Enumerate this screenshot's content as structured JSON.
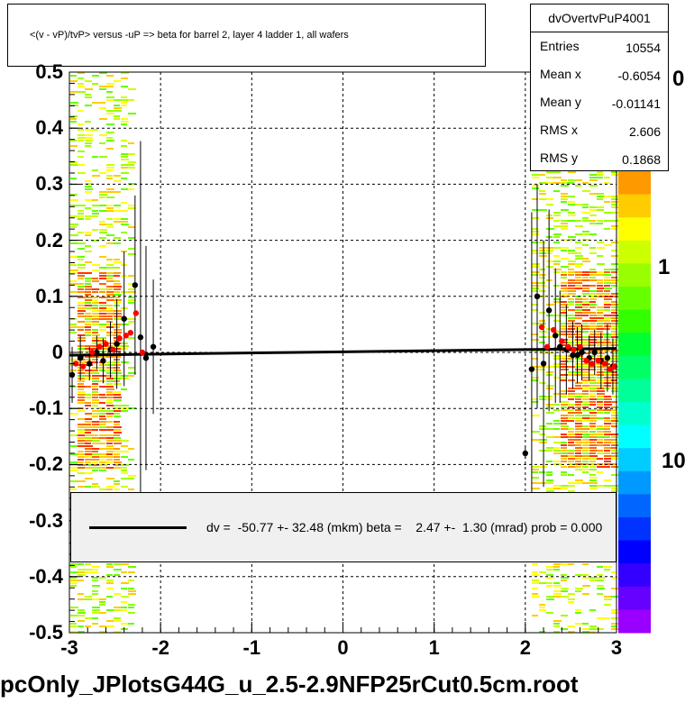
{
  "chart_data": {
    "type": "scatter",
    "title": "<(v - vP)/tvP> versus  -uP => beta for barrel 2, layer 4 ladder 1, all wafers",
    "xlim": [
      -3,
      3
    ],
    "ylim": [
      -0.5,
      0.5
    ],
    "x_ticks": [
      "-3",
      "-2",
      "-1",
      "0",
      "1",
      "2",
      "3"
    ],
    "y_ticks": [
      "-0.5",
      "-0.4",
      "-0.3",
      "-0.2",
      "-0.1",
      "0",
      "0.1",
      "0.2",
      "0.3",
      "0.4",
      "0.5"
    ],
    "grid": true,
    "colorbar_ticks": [
      "0",
      "1",
      "10"
    ],
    "stats": {
      "name": "dvOvertvPuP4001",
      "rows": [
        {
          "label": "Entries",
          "value": "10554"
        },
        {
          "label": "Mean x",
          "value": "-0.6054"
        },
        {
          "label": "Mean y",
          "value": "-0.01141"
        },
        {
          "label": "RMS x",
          "value": "2.606"
        },
        {
          "label": "RMS y",
          "value": "0.1868"
        }
      ]
    },
    "fit_legend": "dv =  -50.77 +- 32.48 (mkm) beta =    2.47 +-  1.30 (mrad) prob = 0.000",
    "fit_line": {
      "x": [
        -3,
        3
      ],
      "y": [
        -0.005,
        0.007
      ]
    },
    "series": [
      {
        "color": "#000000",
        "points": [
          {
            "x": -2.97,
            "y": -0.04,
            "err": 0.05
          },
          {
            "x": -2.88,
            "y": -0.01,
            "err": 0.04
          },
          {
            "x": -2.78,
            "y": -0.02,
            "err": 0.03
          },
          {
            "x": -2.7,
            "y": 0.0,
            "err": 0.03
          },
          {
            "x": -2.63,
            "y": -0.015,
            "err": 0.04
          },
          {
            "x": -2.55,
            "y": 0.005,
            "err": 0.05
          },
          {
            "x": -2.48,
            "y": 0.015,
            "err": 0.08
          },
          {
            "x": -2.4,
            "y": 0.06,
            "err": 0.12
          },
          {
            "x": -2.28,
            "y": 0.12,
            "err": 0.16
          },
          {
            "x": -2.22,
            "y": 0.027,
            "err": 0.35
          },
          {
            "x": -2.16,
            "y": -0.01,
            "err": 0.2
          },
          {
            "x": -2.08,
            "y": 0.01,
            "err": 0.12
          },
          {
            "x": 2.0,
            "y": -0.18,
            "err": 0.01
          },
          {
            "x": 2.07,
            "y": -0.03,
            "err": 0.28
          },
          {
            "x": 2.13,
            "y": 0.1,
            "err": 0.2
          },
          {
            "x": 2.2,
            "y": -0.02,
            "err": 0.22
          },
          {
            "x": 2.26,
            "y": 0.075,
            "err": 0.18
          },
          {
            "x": 2.33,
            "y": 0.03,
            "err": 0.12
          },
          {
            "x": 2.38,
            "y": 0.01,
            "err": 0.1
          },
          {
            "x": 2.45,
            "y": 0.005,
            "err": 0.08
          },
          {
            "x": 2.52,
            "y": -0.005,
            "err": 0.06
          },
          {
            "x": 2.57,
            "y": -0.005,
            "err": 0.05
          },
          {
            "x": 2.62,
            "y": 0.0,
            "err": 0.05
          },
          {
            "x": 2.7,
            "y": -0.01,
            "err": 0.04
          },
          {
            "x": 2.76,
            "y": 0.0,
            "err": 0.04
          },
          {
            "x": 2.83,
            "y": -0.015,
            "err": 0.05
          },
          {
            "x": 2.9,
            "y": -0.01,
            "err": 0.06
          },
          {
            "x": 2.96,
            "y": -0.025,
            "err": 0.05
          }
        ]
      },
      {
        "color": "#ff0000",
        "points": [
          {
            "x": -2.93,
            "y": -0.02
          },
          {
            "x": -2.85,
            "y": -0.025
          },
          {
            "x": -2.75,
            "y": 0.0
          },
          {
            "x": -2.67,
            "y": 0.01
          },
          {
            "x": -2.6,
            "y": 0.015
          },
          {
            "x": -2.52,
            "y": 0.005
          },
          {
            "x": -2.45,
            "y": 0.025
          },
          {
            "x": -2.38,
            "y": 0.03
          },
          {
            "x": -2.33,
            "y": 0.035
          },
          {
            "x": -2.27,
            "y": 0.07
          },
          {
            "x": -2.2,
            "y": 0.0
          },
          {
            "x": 2.18,
            "y": 0.045
          },
          {
            "x": 2.24,
            "y": 0.01
          },
          {
            "x": 2.31,
            "y": 0.04
          },
          {
            "x": 2.4,
            "y": 0.02
          },
          {
            "x": 2.47,
            "y": 0.01
          },
          {
            "x": 2.53,
            "y": 0.005
          },
          {
            "x": 2.6,
            "y": 0.01
          },
          {
            "x": 2.67,
            "y": -0.015
          },
          {
            "x": 2.73,
            "y": -0.02
          },
          {
            "x": 2.8,
            "y": -0.015
          },
          {
            "x": 2.87,
            "y": -0.02
          },
          {
            "x": 2.93,
            "y": -0.03
          },
          {
            "x": 2.98,
            "y": -0.025
          }
        ]
      }
    ]
  },
  "footer": "pcOnly_JPlotsG44G_u_2.5-2.9NFP25rCut0.5cm.root"
}
